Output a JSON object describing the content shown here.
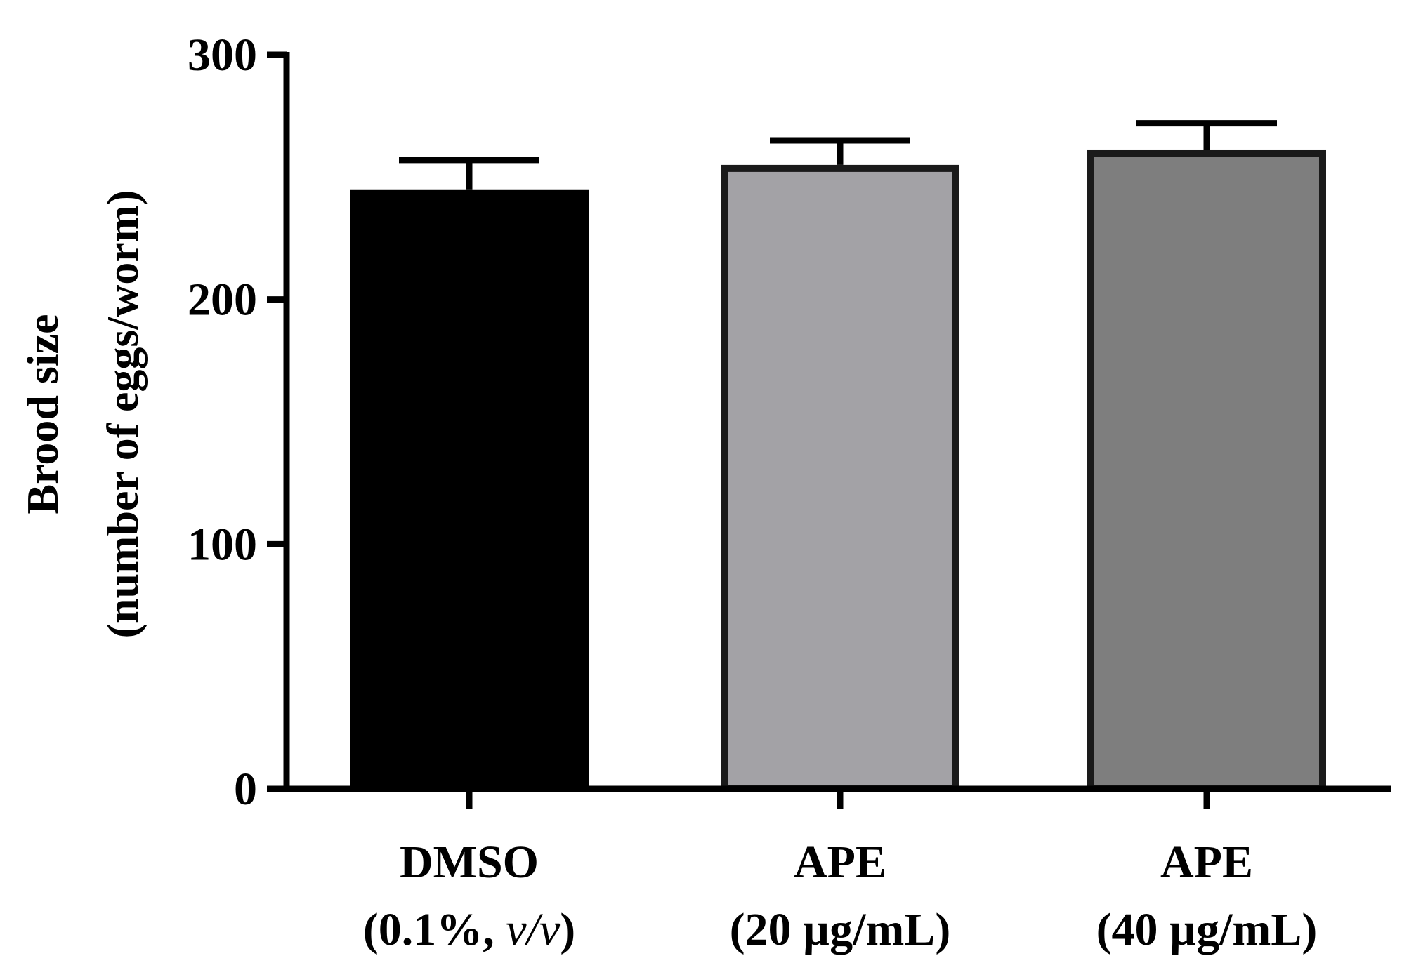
{
  "chart_data": {
    "type": "bar",
    "title": "",
    "xlabel": "",
    "ylabel_line1": "Brood size",
    "ylabel_line2": "(number of eggs/worm)",
    "ylim": [
      0,
      300
    ],
    "yticks": [
      0,
      100,
      200,
      300
    ],
    "ytick_labels": [
      "0",
      "100",
      "200",
      "300"
    ],
    "categories": [
      {
        "line1": "DMSO",
        "line2_prefix": "(0.1%, ",
        "line2_italic": "v/v",
        "line2_suffix": ")"
      },
      {
        "line1": "APE",
        "line2_prefix": "(20 µg/mL)",
        "line2_italic": "",
        "line2_suffix": ""
      },
      {
        "line1": "APE",
        "line2_prefix": "(40 µg/mL)",
        "line2_italic": "",
        "line2_suffix": ""
      }
    ],
    "values": [
      245,
      255,
      261
    ],
    "errors": [
      12,
      10,
      11
    ],
    "colors": [
      "#000000",
      "#a3a2a6",
      "#7e7e7e"
    ],
    "edge_color": "#1a1a1a"
  }
}
